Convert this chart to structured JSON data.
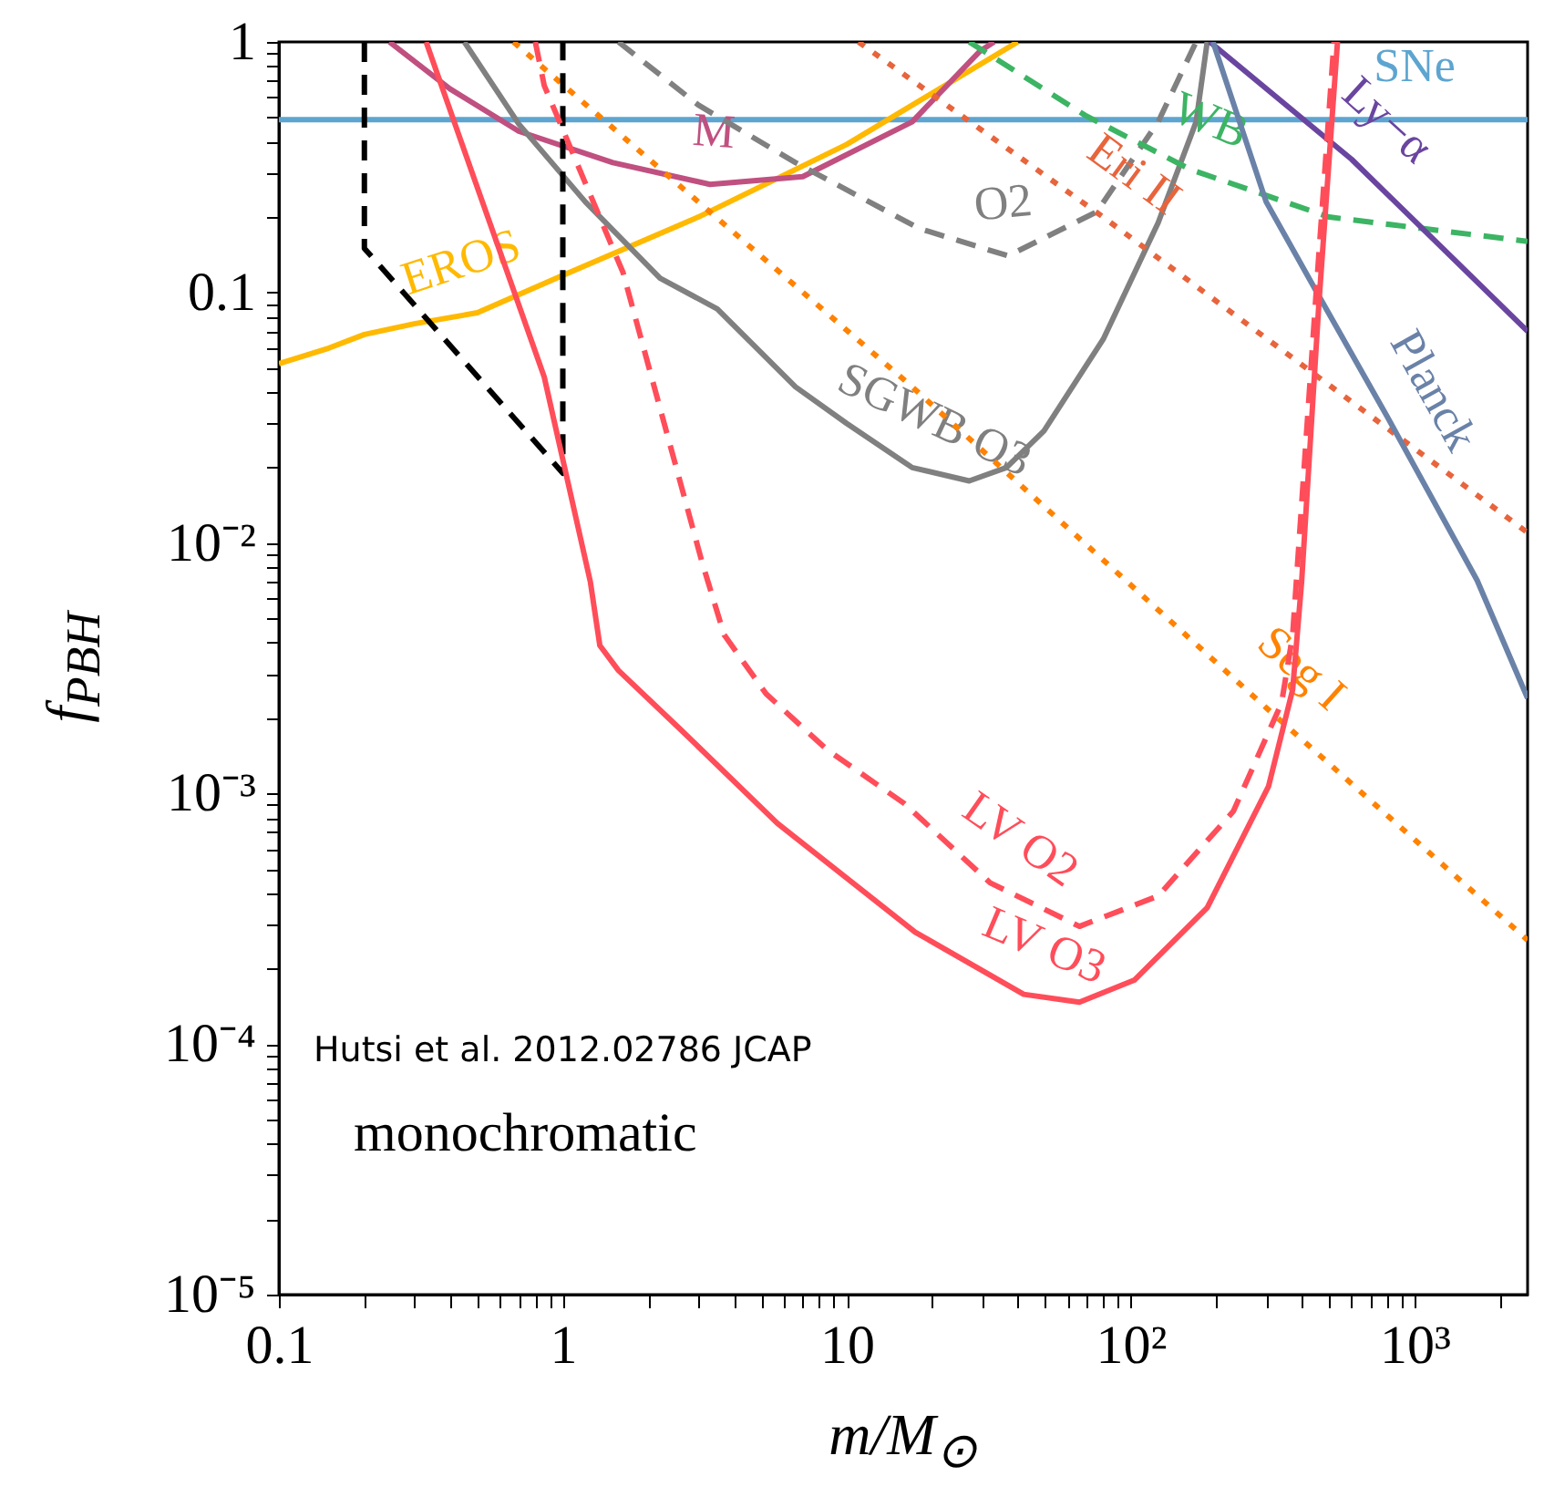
{
  "chart_data": {
    "type": "line",
    "xlabel": "m/M$_{⊙}$",
    "ylabel": "f$_{PBH}$",
    "log": "xy",
    "line_style": "solid",
    "xlim": [
      0.1,
      2500
    ],
    "ylim": [
      1e-05,
      1
    ],
    "xticks": [
      0.1,
      {
        "value": 0.2,
        "label": null
      },
      {
        "value": 0.3,
        "label": null
      },
      {
        "value": 0.4,
        "label": null
      },
      {
        "value": 0.5,
        "label": null
      },
      {
        "value": 0.6,
        "label": null
      },
      {
        "value": 0.7,
        "label": null
      },
      {
        "value": 0.8,
        "label": null
      },
      {
        "value": 0.9,
        "label": null
      },
      1,
      {
        "value": 2,
        "label": null
      },
      {
        "value": 3,
        "label": null
      },
      {
        "value": 4,
        "label": null
      },
      {
        "value": 5,
        "label": null
      },
      {
        "value": 6,
        "label": null
      },
      {
        "value": 7,
        "label": null
      },
      {
        "value": 8,
        "label": null
      },
      {
        "value": 9,
        "label": null
      },
      10,
      {
        "value": 20,
        "label": null
      },
      {
        "value": 30,
        "label": null
      },
      {
        "value": 40,
        "label": null
      },
      {
        "value": 50,
        "label": null
      },
      {
        "value": 60,
        "label": null
      },
      {
        "value": 70,
        "label": null
      },
      {
        "value": 80,
        "label": null
      },
      {
        "value": 90,
        "label": null
      },
      {
        "value": 100,
        "label": "10²"
      },
      {
        "value": 200,
        "label": null
      },
      {
        "value": 300,
        "label": null
      },
      {
        "value": 400,
        "label": null
      },
      {
        "value": 500,
        "label": null
      },
      {
        "value": 600,
        "label": null
      },
      {
        "value": 700,
        "label": null
      },
      {
        "value": 800,
        "label": null
      },
      {
        "value": 900,
        "label": null
      },
      {
        "value": 1000,
        "label": "10³"
      },
      {
        "value": 2000,
        "label": null
      }
    ],
    "yticks": [
      {
        "value": 1e-05,
        "label": "10⁻⁵"
      },
      {
        "value": 2e-05,
        "label": null
      },
      {
        "value": 3e-05,
        "label": null
      },
      {
        "value": 4e-05,
        "label": null
      },
      {
        "value": 5e-05,
        "label": null
      },
      {
        "value": 6e-05,
        "label": null
      },
      {
        "value": 7e-05,
        "label": null
      },
      {
        "value": 8e-05,
        "label": null
      },
      {
        "value": 9e-05,
        "label": null
      },
      {
        "value": 0.0001,
        "label": "10⁻⁴"
      },
      {
        "value": 0.0002,
        "label": null
      },
      {
        "value": 0.0003,
        "label": null
      },
      {
        "value": 0.0004,
        "label": null
      },
      {
        "value": 0.0005,
        "label": null
      },
      {
        "value": 0.0006,
        "label": null
      },
      {
        "value": 0.0007,
        "label": null
      },
      {
        "value": 0.0008,
        "label": null
      },
      {
        "value": 0.0009,
        "label": null
      },
      {
        "value": 0.001,
        "label": "10⁻³"
      },
      {
        "value": 0.002,
        "label": null
      },
      {
        "value": 0.003,
        "label": null
      },
      {
        "value": 0.004,
        "label": null
      },
      {
        "value": 0.005,
        "label": null
      },
      {
        "value": 0.006,
        "label": null
      },
      {
        "value": 0.007,
        "label": null
      },
      {
        "value": 0.008,
        "label": null
      },
      {
        "value": 0.009,
        "label": null
      },
      {
        "value": 0.01,
        "label": "10⁻²"
      },
      {
        "value": 0.02,
        "label": null
      },
      {
        "value": 0.03,
        "label": null
      },
      {
        "value": 0.04,
        "label": null
      },
      {
        "value": 0.05,
        "label": null
      },
      {
        "value": 0.06,
        "label": null
      },
      {
        "value": 0.07,
        "label": null
      },
      {
        "value": 0.08,
        "label": null
      },
      {
        "value": 0.09,
        "label": null
      },
      0.1,
      {
        "value": 0.2,
        "label": null
      },
      {
        "value": 0.3,
        "label": null
      },
      {
        "value": 0.4,
        "label": null
      },
      {
        "value": 0.5,
        "label": null
      },
      {
        "value": 0.6,
        "label": null
      },
      {
        "value": 0.7,
        "label": null
      },
      {
        "value": 0.8,
        "label": null
      },
      {
        "value": 0.9,
        "label": null
      },
      1
    ],
    "series": [
      {
        "name": "SNe",
        "color": "#5da5d0",
        "x": [
          0.1,
          1000,
          2500
        ],
        "values": [
          0.49,
          0.49,
          0.49
        ]
      },
      {
        "name": "EROS",
        "color": "#ffb900",
        "x": [
          0.1,
          0.15,
          0.2,
          0.3,
          0.5,
          1,
          3,
          10,
          40
        ],
        "values": [
          0.052,
          0.06,
          0.068,
          0.075,
          0.083,
          0.117,
          0.2,
          0.39,
          1
        ]
      },
      {
        "name": "M",
        "color": "#c05080",
        "x": [
          0.245,
          0.4,
          0.7,
          1.5,
          3.3,
          7,
          17,
          29.5,
          33
        ],
        "values": [
          1,
          0.65,
          0.44,
          0.33,
          0.27,
          0.29,
          0.48,
          0.92,
          1
        ]
      },
      {
        "name": "O2",
        "color": "#808080",
        "line_style": "dashed",
        "x": [
          1.57,
          3,
          6.6,
          18,
          37,
          76,
          125,
          170
        ],
        "values": [
          1,
          0.56,
          0.33,
          0.18,
          0.14,
          0.21,
          0.48,
          1
        ]
      },
      {
        "name": "SGWB O3",
        "color": "#808080",
        "x": [
          0.45,
          0.7,
          1.2,
          2.2,
          3.5,
          6.6,
          10,
          17,
          27,
          36.5,
          49.5,
          80,
          125,
          170,
          186
        ],
        "values": [
          1,
          0.47,
          0.23,
          0.114,
          0.086,
          0.042,
          0.03,
          0.02,
          0.0177,
          0.02,
          0.028,
          0.065,
          0.19,
          0.48,
          1
        ]
      },
      {
        "name": "WB",
        "color": "#3cb464",
        "line_style": "dashed",
        "x": [
          27,
          69,
          162,
          500,
          2500
        ],
        "values": [
          1,
          0.51,
          0.31,
          0.2,
          0.16
        ]
      },
      {
        "name": "Ly−α",
        "color": "#6a45a0",
        "x": [
          190,
          600,
          2500
        ],
        "values": [
          1,
          0.34,
          0.07
        ]
      },
      {
        "name": "Eri II",
        "color": "#e8643c",
        "line_style": "dotted",
        "x": [
          11,
          80,
          2500
        ],
        "values": [
          1,
          0.2,
          0.011
        ]
      },
      {
        "name": "Planck",
        "color": "#6a82a8",
        "x": [
          195,
          300,
          460,
          800,
          1660,
          2500
        ],
        "values": [
          1,
          0.23,
          0.097,
          0.032,
          0.0071,
          0.0024
        ]
      },
      {
        "name": "Seg I",
        "color": "#ff8200",
        "line_style": "dotted",
        "x": [
          0.67,
          17,
          300,
          2500
        ],
        "values": [
          1,
          0.042,
          0.0022,
          0.00026
        ]
      },
      {
        "color": "#000000",
        "line_style": "dashed",
        "x": [
          0.2,
          0.2,
          1,
          1
        ],
        "values": [
          1,
          0.15,
          0.019,
          1
        ]
      },
      {
        "name": "LV O3",
        "color": "#ff4d5a",
        "x": [
          0.33,
          0.49,
          0.86,
          1.25,
          1.35,
          1.57,
          2.6,
          5.7,
          17.4,
          42,
          66,
          103,
          186,
          306,
          372,
          400,
          460,
          535
        ],
        "values": [
          1,
          0.28,
          0.046,
          0.007,
          0.0039,
          0.0031,
          0.0018,
          0.00076,
          0.00028,
          0.000158,
          0.000147,
          0.00018,
          0.00035,
          0.00107,
          0.0026,
          0.007,
          0.09,
          1
        ]
      },
      {
        "name": "LV O2",
        "color": "#ff4d5a",
        "line_style": "dashed",
        "x": [
          0.8,
          0.86,
          1.63,
          3.1,
          3.7,
          5.2,
          8.5,
          16,
          32,
          66,
          125,
          230,
          340,
          372,
          450,
          520
        ],
        "values": [
          1,
          0.67,
          0.12,
          0.0083,
          0.0043,
          0.0025,
          0.0015,
          0.00091,
          0.00044,
          0.000295,
          0.00039,
          0.00085,
          0.0023,
          0.0043,
          0.1,
          1
        ]
      }
    ],
    "annotations": [
      "Hutsi et al. 2012.02786 JCAP",
      "monochromatic"
    ]
  }
}
